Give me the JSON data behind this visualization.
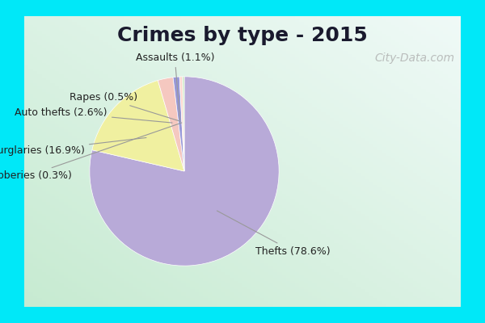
{
  "title": "Crimes by type - 2015",
  "slices": [
    {
      "label": "Thefts",
      "pct": 78.6,
      "color": "#b8aad8"
    },
    {
      "label": "Burglaries",
      "pct": 16.9,
      "color": "#f0f0a0"
    },
    {
      "label": "Auto thefts",
      "pct": 2.6,
      "color": "#f5c8c0"
    },
    {
      "label": "Assaults",
      "pct": 1.1,
      "color": "#9898d8"
    },
    {
      "label": "Rapes",
      "pct": 0.5,
      "color": "#fcd8d0"
    },
    {
      "label": "Robberies",
      "pct": 0.3,
      "color": "#c8e8c0"
    }
  ],
  "bg_cyan": "#00e8f8",
  "title_fontsize": 18,
  "label_fontsize": 9,
  "watermark": "City-Data.com",
  "border_thickness": 0.05
}
